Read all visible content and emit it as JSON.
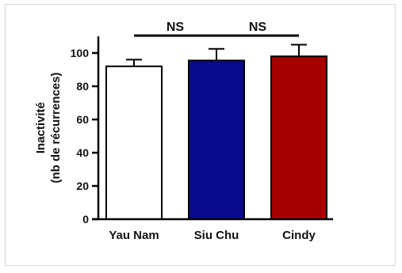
{
  "chart_data": {
    "type": "bar",
    "categories": [
      "Yau Nam",
      "Siu Chu",
      "Cindy"
    ],
    "values": [
      92,
      95.5,
      98
    ],
    "errors": [
      4,
      7,
      7
    ],
    "colors": [
      "#ffffff",
      "#0a0a8c",
      "#a50000"
    ],
    "ylabel_line1": "Inactivité",
    "ylabel_line2": "(nb de récurrences)",
    "ylim": [
      0,
      100
    ],
    "yticks": [
      "0",
      "20",
      "40",
      "60",
      "80",
      "100"
    ],
    "yaxis_max": 110,
    "annotations": [
      {
        "text": "NS",
        "from": 0,
        "to": 1
      },
      {
        "text": "NS",
        "from": 1,
        "to": 2
      }
    ],
    "grid": false,
    "legend": "none"
  }
}
